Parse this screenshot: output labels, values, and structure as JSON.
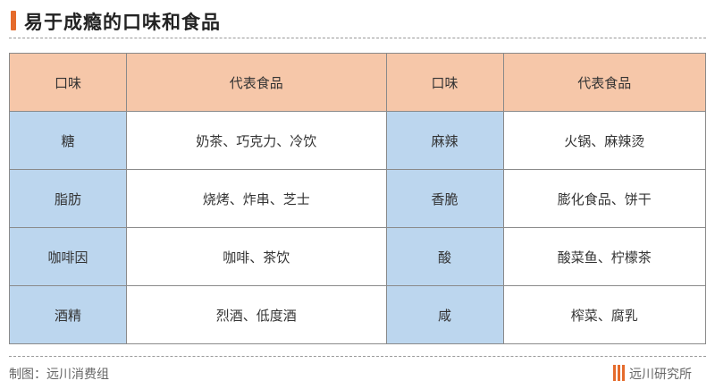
{
  "title": "易于成瘾的口味和食品",
  "table": {
    "headers": [
      "口味",
      "代表食品",
      "口味",
      "代表食品"
    ],
    "rows": [
      [
        "糖",
        "奶茶、巧克力、冷饮",
        "麻辣",
        "火锅、麻辣烫"
      ],
      [
        "脂肪",
        "烧烤、炸串、芝士",
        "香脆",
        "膨化食品、饼干"
      ],
      [
        "咖啡因",
        "咖啡、茶饮",
        "酸",
        "酸菜鱼、柠檬茶"
      ],
      [
        "酒精",
        "烈酒、低度酒",
        "咸",
        "榨菜、腐乳"
      ]
    ]
  },
  "footer": {
    "credit": "制图：远川消费组",
    "brand": "远川研究所"
  },
  "colors": {
    "accent": "#e56b2c",
    "header": "#f6c7a9",
    "key_column": "#bcd6ee"
  }
}
